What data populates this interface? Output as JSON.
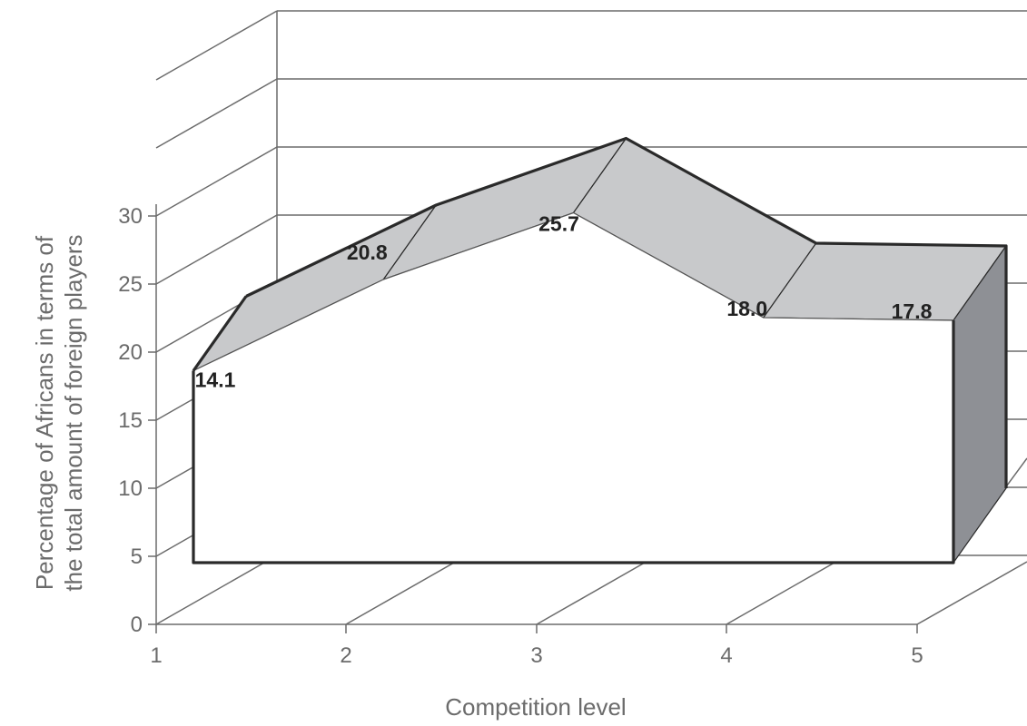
{
  "chart_data": {
    "type": "area",
    "style": "3d",
    "categories": [
      "1",
      "2",
      "3",
      "4",
      "5"
    ],
    "values": [
      14.1,
      20.8,
      25.7,
      18.0,
      17.8
    ],
    "data_labels": [
      "14.1",
      "20.8",
      "25.7",
      "18.0",
      "17.8"
    ],
    "title": "",
    "xlabel": "Competition level",
    "ylabel_lines": [
      "Percentage of Africans in terms of",
      "the total amount of foreign players"
    ],
    "ylim": [
      0,
      30
    ],
    "yticks": [
      "0",
      "5",
      "10",
      "15",
      "20",
      "25",
      "30"
    ],
    "grid": true,
    "legend": "none",
    "colors": {
      "front_face": "#ffffff",
      "top_face": "#c8c9cb",
      "side_face": "#8e9095",
      "outline": "#2a2a2a",
      "axis": "#6b6b6b"
    }
  }
}
